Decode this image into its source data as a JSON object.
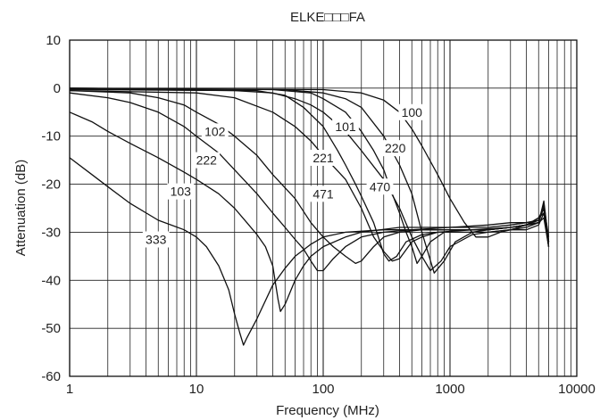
{
  "chart_data": {
    "type": "line",
    "title": "ELKE□□□FA",
    "xlabel": "Frequency (MHz)",
    "ylabel": "Attenuation (dB)",
    "x_scale": "log",
    "xlim": [
      1,
      10000
    ],
    "ylim": [
      -60,
      10
    ],
    "x_ticks": [
      1,
      10,
      100,
      1000,
      10000
    ],
    "x_tick_labels": [
      "1",
      "10",
      "100",
      "1000",
      "10000"
    ],
    "y_ticks": [
      10,
      0,
      -10,
      -20,
      -30,
      -40,
      -50,
      -60
    ],
    "y_tick_labels": [
      "10",
      "0",
      "-10",
      "-20",
      "-30",
      "-40",
      "-50",
      "-60"
    ],
    "grid": true,
    "legend": "none",
    "colors": {
      "line": "#111111",
      "grid": "#222222",
      "background": "#ffffff"
    },
    "series": [
      {
        "name": "100",
        "label_at": [
          500,
          -5
        ],
        "points": [
          [
            1,
            0
          ],
          [
            100,
            -0.3
          ],
          [
            200,
            -1
          ],
          [
            300,
            -2.5
          ],
          [
            400,
            -5
          ],
          [
            500,
            -8.5
          ],
          [
            600,
            -12
          ],
          [
            800,
            -18
          ],
          [
            1000,
            -23
          ],
          [
            1300,
            -28
          ],
          [
            1600,
            -31
          ],
          [
            2000,
            -31
          ],
          [
            2500,
            -30
          ],
          [
            3000,
            -29.5
          ],
          [
            4000,
            -29.5
          ],
          [
            5000,
            -28.5
          ],
          [
            5500,
            -26
          ],
          [
            6000,
            -33
          ]
        ]
      },
      {
        "name": "220",
        "label_at": [
          370,
          -12.5
        ],
        "points": [
          [
            1,
            0
          ],
          [
            50,
            -0.3
          ],
          [
            100,
            -1
          ],
          [
            150,
            -2.2
          ],
          [
            200,
            -4
          ],
          [
            300,
            -10
          ],
          [
            400,
            -16
          ],
          [
            500,
            -22
          ],
          [
            600,
            -30
          ],
          [
            750,
            -38.5
          ],
          [
            900,
            -36
          ],
          [
            1100,
            -32
          ],
          [
            1500,
            -30
          ],
          [
            2000,
            -29.5
          ],
          [
            3000,
            -29
          ],
          [
            4000,
            -28.5
          ],
          [
            5000,
            -27
          ],
          [
            5500,
            -25
          ],
          [
            6000,
            -33
          ]
        ]
      },
      {
        "name": "101",
        "label_at": [
          150,
          -8
        ],
        "points": [
          [
            1,
            -0.2
          ],
          [
            20,
            -0.5
          ],
          [
            40,
            -1
          ],
          [
            60,
            -2.2
          ],
          [
            80,
            -3.5
          ],
          [
            100,
            -5
          ],
          [
            150,
            -9
          ],
          [
            200,
            -13
          ],
          [
            300,
            -19
          ],
          [
            400,
            -25
          ],
          [
            500,
            -31
          ],
          [
            600,
            -35
          ],
          [
            700,
            -38
          ],
          [
            850,
            -36
          ],
          [
            1000,
            -33
          ],
          [
            1500,
            -30.5
          ],
          [
            2000,
            -30
          ],
          [
            3000,
            -29.5
          ],
          [
            4000,
            -28.5
          ],
          [
            5000,
            -27
          ],
          [
            5500,
            -26
          ],
          [
            6000,
            -32
          ]
        ]
      },
      {
        "name": "470",
        "label_at": [
          280,
          -20.5
        ],
        "points": [
          [
            1,
            0
          ],
          [
            40,
            -0.3
          ],
          [
            80,
            -1
          ],
          [
            100,
            -2.2
          ],
          [
            150,
            -5
          ],
          [
            200,
            -9
          ],
          [
            250,
            -13
          ],
          [
            300,
            -17
          ],
          [
            350,
            -22
          ],
          [
            400,
            -26
          ],
          [
            450,
            -30
          ],
          [
            500,
            -33
          ],
          [
            550,
            -36.5
          ],
          [
            600,
            -35
          ],
          [
            700,
            -32
          ],
          [
            900,
            -30
          ],
          [
            1200,
            -29.5
          ],
          [
            2000,
            -29.5
          ],
          [
            3000,
            -29
          ],
          [
            4000,
            -28.5
          ],
          [
            5000,
            -28
          ],
          [
            5500,
            -24
          ],
          [
            6000,
            -32
          ]
        ]
      },
      {
        "name": "221",
        "label_at": [
          100,
          -14.5
        ],
        "points": [
          [
            1,
            -0.5
          ],
          [
            10,
            -1
          ],
          [
            20,
            -2
          ],
          [
            40,
            -5
          ],
          [
            60,
            -8
          ],
          [
            80,
            -11
          ],
          [
            100,
            -14
          ],
          [
            150,
            -19
          ],
          [
            200,
            -25
          ],
          [
            250,
            -31
          ],
          [
            300,
            -34
          ],
          [
            350,
            -36
          ],
          [
            400,
            -35.5
          ],
          [
            500,
            -32
          ],
          [
            600,
            -31
          ],
          [
            800,
            -30
          ],
          [
            1000,
            -30
          ],
          [
            2000,
            -30
          ],
          [
            3000,
            -29.5
          ],
          [
            4000,
            -29
          ],
          [
            5000,
            -28
          ],
          [
            5500,
            -23.5
          ],
          [
            6000,
            -32
          ]
        ]
      },
      {
        "name": "471",
        "label_at": [
          100,
          -22
        ],
        "points": [
          [
            1,
            -0.3
          ],
          [
            30,
            -0.5
          ],
          [
            50,
            -1.5
          ],
          [
            70,
            -4
          ],
          [
            100,
            -8
          ],
          [
            130,
            -13
          ],
          [
            150,
            -16
          ],
          [
            180,
            -20
          ],
          [
            200,
            -22.5
          ],
          [
            250,
            -28
          ],
          [
            280,
            -32
          ],
          [
            300,
            -34.5
          ],
          [
            330,
            -36
          ],
          [
            380,
            -35
          ],
          [
            450,
            -32
          ],
          [
            600,
            -30.5
          ],
          [
            800,
            -30
          ],
          [
            1500,
            -29.5
          ],
          [
            3000,
            -29
          ],
          [
            4000,
            -28.5
          ],
          [
            5000,
            -27.5
          ],
          [
            5500,
            -25
          ],
          [
            6000,
            -33
          ]
        ]
      },
      {
        "name": "102",
        "label_at": [
          14,
          -9
        ],
        "points": [
          [
            1,
            -0.5
          ],
          [
            3,
            -1
          ],
          [
            5,
            -2
          ],
          [
            8,
            -3.5
          ],
          [
            10,
            -5
          ],
          [
            15,
            -7.5
          ],
          [
            20,
            -10
          ],
          [
            30,
            -14
          ],
          [
            40,
            -18
          ],
          [
            60,
            -23
          ],
          [
            80,
            -28
          ],
          [
            100,
            -31
          ],
          [
            120,
            -33
          ],
          [
            150,
            -35
          ],
          [
            180,
            -36.5
          ],
          [
            200,
            -36
          ],
          [
            250,
            -33
          ],
          [
            300,
            -31
          ],
          [
            400,
            -30
          ],
          [
            600,
            -29.5
          ],
          [
            1000,
            -29.5
          ],
          [
            2000,
            -29.5
          ],
          [
            3000,
            -29
          ],
          [
            4000,
            -28.5
          ],
          [
            5000,
            -28
          ],
          [
            5500,
            -27
          ],
          [
            6000,
            -33
          ]
        ]
      },
      {
        "name": "222",
        "label_at": [
          12,
          -15
        ],
        "points": [
          [
            1,
            -1
          ],
          [
            2,
            -2
          ],
          [
            3,
            -3
          ],
          [
            5,
            -5
          ],
          [
            8,
            -8
          ],
          [
            10,
            -10
          ],
          [
            15,
            -13.5
          ],
          [
            20,
            -17
          ],
          [
            30,
            -22
          ],
          [
            40,
            -26
          ],
          [
            50,
            -29
          ],
          [
            60,
            -31.5
          ],
          [
            70,
            -33.5
          ],
          [
            80,
            -36
          ],
          [
            90,
            -38
          ],
          [
            100,
            -38
          ],
          [
            120,
            -35.5
          ],
          [
            150,
            -33
          ],
          [
            200,
            -31
          ],
          [
            300,
            -30
          ],
          [
            500,
            -29.5
          ],
          [
            1000,
            -29
          ],
          [
            2000,
            -29
          ],
          [
            3000,
            -28.5
          ],
          [
            4000,
            -28
          ],
          [
            5000,
            -27.5
          ],
          [
            5500,
            -25
          ],
          [
            6000,
            -32
          ]
        ]
      },
      {
        "name": "103",
        "label_at": [
          7.5,
          -21.5
        ],
        "points": [
          [
            1,
            -5
          ],
          [
            1.5,
            -7
          ],
          [
            2,
            -9
          ],
          [
            3,
            -11.5
          ],
          [
            5,
            -14.5
          ],
          [
            8,
            -17.5
          ],
          [
            10,
            -19
          ],
          [
            15,
            -22
          ],
          [
            20,
            -25
          ],
          [
            25,
            -28
          ],
          [
            30,
            -30.5
          ],
          [
            35,
            -33
          ],
          [
            40,
            -37
          ],
          [
            44,
            -44
          ],
          [
            46,
            -46.5
          ],
          [
            50,
            -45
          ],
          [
            60,
            -40
          ],
          [
            70,
            -37
          ],
          [
            80,
            -35
          ],
          [
            100,
            -33
          ],
          [
            150,
            -31
          ],
          [
            200,
            -30
          ],
          [
            400,
            -29
          ],
          [
            1000,
            -29
          ],
          [
            2000,
            -28.5
          ],
          [
            3000,
            -28
          ],
          [
            4000,
            -28
          ],
          [
            5000,
            -27.5
          ],
          [
            5500,
            -25
          ],
          [
            6000,
            -32
          ]
        ]
      },
      {
        "name": "333",
        "label_at": [
          4.8,
          -31.5
        ],
        "points": [
          [
            1,
            -14.5
          ],
          [
            1.5,
            -18
          ],
          [
            2,
            -20.5
          ],
          [
            3,
            -24
          ],
          [
            5,
            -27.5
          ],
          [
            8,
            -29.5
          ],
          [
            10,
            -31
          ],
          [
            12,
            -33
          ],
          [
            15,
            -37
          ],
          [
            18,
            -42
          ],
          [
            20,
            -47
          ],
          [
            22,
            -51
          ],
          [
            23.5,
            -53.5
          ],
          [
            25,
            -52
          ],
          [
            30,
            -48
          ],
          [
            40,
            -41
          ],
          [
            50,
            -37.5
          ],
          [
            60,
            -35
          ],
          [
            80,
            -32.5
          ],
          [
            100,
            -31
          ],
          [
            150,
            -30
          ],
          [
            300,
            -29.5
          ],
          [
            500,
            -29.5
          ],
          [
            1000,
            -29.5
          ],
          [
            2000,
            -29.5
          ],
          [
            3000,
            -29
          ],
          [
            4000,
            -28.5
          ],
          [
            5000,
            -28
          ],
          [
            5500,
            -24.5
          ],
          [
            6000,
            -31
          ]
        ]
      }
    ]
  }
}
